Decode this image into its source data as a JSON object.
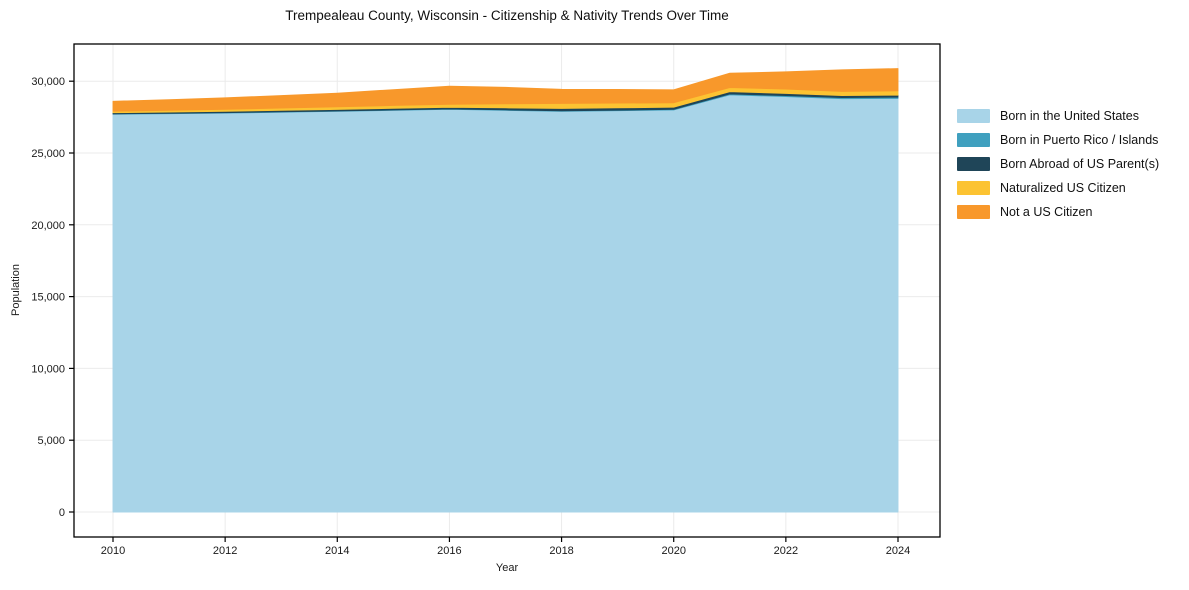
{
  "chart_data": {
    "type": "area",
    "stacked": true,
    "title": "Trempealeau County, Wisconsin - Citizenship & Nativity Trends Over Time",
    "xlabel": "Year",
    "ylabel": "Population",
    "x": [
      2010,
      2011,
      2012,
      2013,
      2014,
      2015,
      2016,
      2017,
      2018,
      2019,
      2020,
      2021,
      2022,
      2023,
      2024
    ],
    "series": [
      {
        "name": "Born in the United States",
        "color": "#a8d4e8",
        "values": [
          27700,
          27740,
          27780,
          27840,
          27900,
          27970,
          28040,
          27970,
          27900,
          27950,
          28000,
          29050,
          28930,
          28780,
          28800
        ]
      },
      {
        "name": "Born in Puerto Rico / Islands",
        "color": "#3fa0bf",
        "values": [
          25,
          25,
          30,
          30,
          30,
          30,
          30,
          35,
          35,
          35,
          40,
          60,
          70,
          80,
          90
        ]
      },
      {
        "name": "Born Abroad of US Parent(s)",
        "color": "#1f4558",
        "values": [
          80,
          85,
          90,
          100,
          105,
          110,
          110,
          140,
          170,
          160,
          150,
          160,
          150,
          140,
          140
        ]
      },
      {
        "name": "Naturalized US Citizen",
        "color": "#fcc332",
        "values": [
          105,
          120,
          140,
          160,
          180,
          200,
          210,
          280,
          350,
          330,
          310,
          290,
          300,
          290,
          300
        ]
      },
      {
        "name": "Not a US Citizen",
        "color": "#f8982b",
        "values": [
          690,
          740,
          800,
          870,
          950,
          1100,
          1260,
          1150,
          980,
          950,
          900,
          1000,
          1200,
          1500,
          1550
        ]
      }
    ],
    "xticks": [
      2010,
      2012,
      2014,
      2016,
      2018,
      2020,
      2022,
      2024
    ],
    "xtick_labels": [
      "2010",
      "2012",
      "2014",
      "2016",
      "2018",
      "2020",
      "2022",
      "2024"
    ],
    "yticks": [
      0,
      5000,
      10000,
      15000,
      20000,
      25000,
      30000
    ],
    "ytick_labels": [
      "0",
      "5,000",
      "10,000",
      "15,000",
      "20,000",
      "25,000",
      "30,000"
    ],
    "ylim": [
      0,
      32700
    ],
    "grid": true,
    "legend_position": "right of plot",
    "grid_color": "#ebebeb",
    "spine_color": "#000000",
    "background_color": "#ffffff"
  }
}
